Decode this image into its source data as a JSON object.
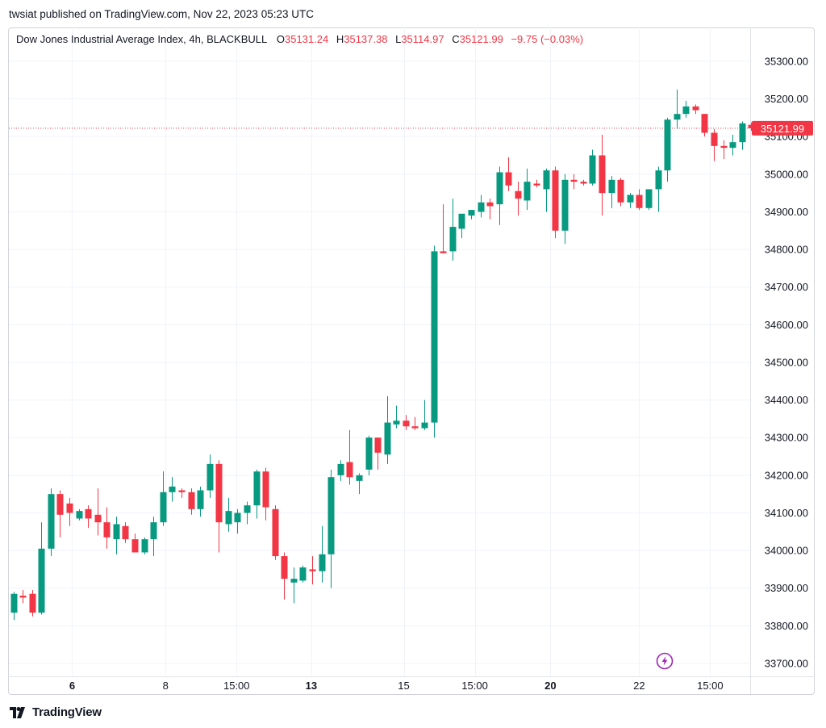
{
  "publisher_line": "twsiat published on TradingView.com, Nov 22, 2023 05:23 UTC",
  "legend": {
    "symbol": "Dow Jones Industrial Average Index, 4h, BLACKBULL",
    "o_label": "O",
    "o_value": "35131.24",
    "h_label": "H",
    "h_value": "35137.38",
    "l_label": "L",
    "l_value": "35114.97",
    "c_label": "C",
    "c_value": "35121.99",
    "change": "−9.75 (−0.03%)"
  },
  "footer": {
    "brand": "TradingView",
    "logo_icon": "tradingview-logo-icon"
  },
  "colors": {
    "up": "#089981",
    "down": "#f23645",
    "grid": "#f0f3fa",
    "text": "#131722"
  },
  "chart_data": {
    "type": "candlestick",
    "title": "Dow Jones Industrial Average Index, 4h, BLACKBULL",
    "ylim": [
      33650,
      35350
    ],
    "y_ticks": [
      33700,
      33800,
      33900,
      34000,
      34100,
      34200,
      34300,
      34400,
      34500,
      34600,
      34700,
      34800,
      34900,
      35000,
      35100,
      35200,
      35300
    ],
    "y_tick_labels": [
      "33700.00",
      "33800.00",
      "33900.00",
      "34000.00",
      "34100.00",
      "34200.00",
      "34300.00",
      "34400.00",
      "34500.00",
      "34600.00",
      "34700.00",
      "34800.00",
      "34900.00",
      "35000.00",
      "35100.00",
      "35200.00",
      "35300.00"
    ],
    "x_tick_labels": [
      "6",
      "8",
      "15:00",
      "13",
      "15",
      "15:00",
      "20",
      "22",
      "15:00"
    ],
    "x_tick_bold": [
      true,
      false,
      false,
      true,
      false,
      false,
      true,
      false,
      false
    ],
    "x_tick_bar_index": [
      6.3,
      16.3,
      23.9,
      31.9,
      41.8,
      49.4,
      57.5,
      67.0,
      74.6
    ],
    "last_price": 35121.99,
    "last_price_label": "35121.99",
    "candles": [
      {
        "o": 33835,
        "h": 33890,
        "l": 33815,
        "c": 33885
      },
      {
        "o": 33880,
        "h": 33895,
        "l": 33860,
        "c": 33875
      },
      {
        "o": 33885,
        "h": 33895,
        "l": 33825,
        "c": 33835
      },
      {
        "o": 33835,
        "h": 34075,
        "l": 33830,
        "c": 34005
      },
      {
        "o": 34005,
        "h": 34165,
        "l": 33985,
        "c": 34150
      },
      {
        "o": 34150,
        "h": 34160,
        "l": 34035,
        "c": 34095
      },
      {
        "o": 34125,
        "h": 34140,
        "l": 34065,
        "c": 34100
      },
      {
        "o": 34085,
        "h": 34110,
        "l": 34080,
        "c": 34105
      },
      {
        "o": 34110,
        "h": 34120,
        "l": 34060,
        "c": 34085
      },
      {
        "o": 34095,
        "h": 34165,
        "l": 34040,
        "c": 34075
      },
      {
        "o": 34075,
        "h": 34115,
        "l": 34005,
        "c": 34035
      },
      {
        "o": 34030,
        "h": 34090,
        "l": 33990,
        "c": 34070
      },
      {
        "o": 34065,
        "h": 34075,
        "l": 34020,
        "c": 34030
      },
      {
        "o": 34030,
        "h": 34045,
        "l": 34000,
        "c": 33995
      },
      {
        "o": 33995,
        "h": 34035,
        "l": 33990,
        "c": 34030
      },
      {
        "o": 34030,
        "h": 34090,
        "l": 33985,
        "c": 34075
      },
      {
        "o": 34075,
        "h": 34210,
        "l": 34065,
        "c": 34155
      },
      {
        "o": 34155,
        "h": 34195,
        "l": 34130,
        "c": 34170
      },
      {
        "o": 34160,
        "h": 34165,
        "l": 34140,
        "c": 34155
      },
      {
        "o": 34155,
        "h": 34165,
        "l": 34095,
        "c": 34110
      },
      {
        "o": 34110,
        "h": 34170,
        "l": 34090,
        "c": 34160
      },
      {
        "o": 34160,
        "h": 34255,
        "l": 34140,
        "c": 34230
      },
      {
        "o": 34230,
        "h": 34240,
        "l": 33995,
        "c": 34075
      },
      {
        "o": 34070,
        "h": 34140,
        "l": 34050,
        "c": 34105
      },
      {
        "o": 34075,
        "h": 34110,
        "l": 34045,
        "c": 34100
      },
      {
        "o": 34100,
        "h": 34130,
        "l": 34070,
        "c": 34120
      },
      {
        "o": 34120,
        "h": 34215,
        "l": 34085,
        "c": 34210
      },
      {
        "o": 34210,
        "h": 34220,
        "l": 34080,
        "c": 34115
      },
      {
        "o": 34110,
        "h": 34120,
        "l": 33975,
        "c": 33985
      },
      {
        "o": 33985,
        "h": 33995,
        "l": 33870,
        "c": 33925
      },
      {
        "o": 33915,
        "h": 33955,
        "l": 33860,
        "c": 33925
      },
      {
        "o": 33920,
        "h": 33960,
        "l": 33915,
        "c": 33955
      },
      {
        "o": 33950,
        "h": 33985,
        "l": 33910,
        "c": 33945
      },
      {
        "o": 33945,
        "h": 34065,
        "l": 33915,
        "c": 33990
      },
      {
        "o": 33990,
        "h": 34215,
        "l": 33900,
        "c": 34195
      },
      {
        "o": 34200,
        "h": 34240,
        "l": 34185,
        "c": 34230
      },
      {
        "o": 34235,
        "h": 34320,
        "l": 34175,
        "c": 34195
      },
      {
        "o": 34185,
        "h": 34205,
        "l": 34150,
        "c": 34200
      },
      {
        "o": 34215,
        "h": 34305,
        "l": 34200,
        "c": 34300
      },
      {
        "o": 34300,
        "h": 34300,
        "l": 34215,
        "c": 34260
      },
      {
        "o": 34255,
        "h": 34410,
        "l": 34230,
        "c": 34340
      },
      {
        "o": 34335,
        "h": 34385,
        "l": 34325,
        "c": 34345
      },
      {
        "o": 34345,
        "h": 34360,
        "l": 34320,
        "c": 34330
      },
      {
        "o": 34330,
        "h": 34355,
        "l": 34320,
        "c": 34325
      },
      {
        "o": 34325,
        "h": 34400,
        "l": 34320,
        "c": 34340
      },
      {
        "o": 34340,
        "h": 34810,
        "l": 34300,
        "c": 34795
      },
      {
        "o": 34795,
        "h": 34920,
        "l": 34790,
        "c": 34790
      },
      {
        "o": 34795,
        "h": 34935,
        "l": 34770,
        "c": 34860
      },
      {
        "o": 34855,
        "h": 34890,
        "l": 34830,
        "c": 34895
      },
      {
        "o": 34890,
        "h": 34905,
        "l": 34880,
        "c": 34905
      },
      {
        "o": 34900,
        "h": 34945,
        "l": 34885,
        "c": 34925
      },
      {
        "o": 34925,
        "h": 34935,
        "l": 34880,
        "c": 34915
      },
      {
        "o": 34920,
        "h": 35020,
        "l": 34865,
        "c": 35005
      },
      {
        "o": 35005,
        "h": 35045,
        "l": 34955,
        "c": 34970
      },
      {
        "o": 34955,
        "h": 34980,
        "l": 34890,
        "c": 34935
      },
      {
        "o": 34930,
        "h": 35015,
        "l": 34905,
        "c": 34980
      },
      {
        "o": 34975,
        "h": 34985,
        "l": 34965,
        "c": 34970
      },
      {
        "o": 34960,
        "h": 35015,
        "l": 34900,
        "c": 35010
      },
      {
        "o": 35010,
        "h": 35020,
        "l": 34830,
        "c": 34850
      },
      {
        "o": 34850,
        "h": 35000,
        "l": 34815,
        "c": 34985
      },
      {
        "o": 34985,
        "h": 35000,
        "l": 34960,
        "c": 34980
      },
      {
        "o": 34980,
        "h": 34985,
        "l": 34970,
        "c": 34975
      },
      {
        "o": 34975,
        "h": 35065,
        "l": 34970,
        "c": 35050
      },
      {
        "o": 35050,
        "h": 35105,
        "l": 34890,
        "c": 34950
      },
      {
        "o": 34950,
        "h": 34995,
        "l": 34910,
        "c": 34985
      },
      {
        "o": 34985,
        "h": 34990,
        "l": 34915,
        "c": 34925
      },
      {
        "o": 34925,
        "h": 34950,
        "l": 34910,
        "c": 34945
      },
      {
        "o": 34945,
        "h": 34960,
        "l": 34905,
        "c": 34910
      },
      {
        "o": 34910,
        "h": 34955,
        "l": 34905,
        "c": 34960
      },
      {
        "o": 34960,
        "h": 35020,
        "l": 34900,
        "c": 35010
      },
      {
        "o": 35010,
        "h": 35150,
        "l": 34980,
        "c": 35145
      },
      {
        "o": 35145,
        "h": 35225,
        "l": 35120,
        "c": 35160
      },
      {
        "o": 35160,
        "h": 35195,
        "l": 35150,
        "c": 35180
      },
      {
        "o": 35180,
        "h": 35185,
        "l": 35160,
        "c": 35170
      },
      {
        "o": 35160,
        "h": 35160,
        "l": 35100,
        "c": 35110
      },
      {
        "o": 35110,
        "h": 35120,
        "l": 35035,
        "c": 35075
      },
      {
        "o": 35075,
        "h": 35090,
        "l": 35040,
        "c": 35070
      },
      {
        "o": 35070,
        "h": 35105,
        "l": 35050,
        "c": 35085
      },
      {
        "o": 35085,
        "h": 35140,
        "l": 35065,
        "c": 35135
      },
      {
        "o": 35131.24,
        "h": 35137.38,
        "l": 35114.97,
        "c": 35121.99
      }
    ]
  }
}
